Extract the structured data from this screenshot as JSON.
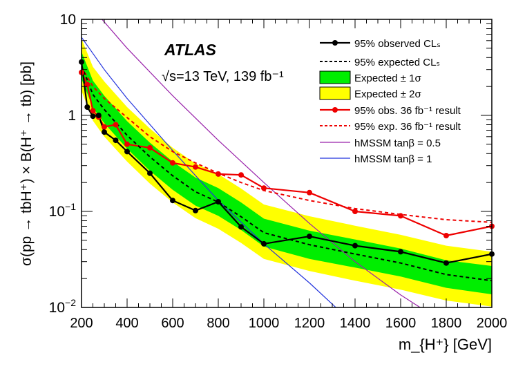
{
  "chart_data": {
    "type": "line",
    "yscale": "log",
    "xlim": [
      200,
      2000
    ],
    "ylim": [
      0.01,
      10
    ],
    "ylabel": "σ(pp → tbH⁺) × B(H⁺ → tb) [pb]",
    "xlabel": "m_{H⁺} [GeV]",
    "x_ticks": [
      200,
      400,
      600,
      800,
      1000,
      1200,
      1400,
      1600,
      1800,
      2000
    ],
    "y_ticks": [
      {
        "value": 0.01,
        "base": "10",
        "exp": "−2"
      },
      {
        "value": 0.1,
        "base": "10",
        "exp": "−1"
      },
      {
        "value": 1,
        "base": "1",
        "exp": ""
      },
      {
        "value": 10,
        "base": "10",
        "exp": ""
      }
    ],
    "experiment": "ATLAS",
    "energy_label": "√s=13 TeV, 139 fb⁻¹",
    "legend_position": "top-right",
    "legend": [
      {
        "key": "obs",
        "label": "95% observed CLₛ"
      },
      {
        "key": "exp",
        "label": "95% expected CLₛ"
      },
      {
        "key": "band1",
        "label": "Expected ± 1σ"
      },
      {
        "key": "band2",
        "label": "Expected ± 2σ"
      },
      {
        "key": "obs36",
        "label": "95% obs. 36 fb⁻¹ result"
      },
      {
        "key": "exp36",
        "label": "95% exp. 36 fb⁻¹ result"
      },
      {
        "key": "hm05",
        "label": "hMSSM tanβ = 0.5"
      },
      {
        "key": "hm1",
        "label": "hMSSM tanβ = 1"
      }
    ],
    "colors": {
      "obs": "#000000",
      "exp": "#000000",
      "band1": "#00ee00",
      "band2": "#ffff00",
      "obs36": "#ee0000",
      "exp36": "#ee0000",
      "hm05": "#9922aa",
      "hm1": "#2233dd"
    },
    "series": [
      {
        "name": "95% observed CLs",
        "key": "obs",
        "x": [
          200,
          225,
          250,
          275,
          300,
          350,
          400,
          500,
          600,
          700,
          800,
          900,
          1000,
          1200,
          1400,
          1600,
          1800,
          2000
        ],
        "y": [
          3.6,
          1.22,
          0.98,
          1.0,
          0.67,
          0.55,
          0.42,
          0.25,
          0.13,
          0.102,
          0.126,
          0.069,
          0.046,
          0.055,
          0.044,
          0.038,
          0.029,
          0.036
        ]
      },
      {
        "name": "95% expected CLs",
        "key": "exp",
        "x": [
          200,
          250,
          300,
          400,
          500,
          600,
          700,
          800,
          900,
          1000,
          1200,
          1400,
          1600,
          1800,
          2000
        ],
        "y": [
          3.3,
          1.65,
          1.15,
          0.62,
          0.37,
          0.235,
          0.16,
          0.125,
          0.088,
          0.06,
          0.045,
          0.036,
          0.029,
          0.022,
          0.019
        ]
      },
      {
        "name": "Expected ±1σ",
        "key": "band1",
        "x": [
          200,
          250,
          300,
          400,
          500,
          600,
          700,
          800,
          900,
          1000,
          1200,
          1400,
          1600,
          1800,
          2000
        ],
        "low": [
          2.4,
          1.2,
          0.83,
          0.45,
          0.265,
          0.168,
          0.115,
          0.09,
          0.064,
          0.043,
          0.032,
          0.026,
          0.021,
          0.016,
          0.0137
        ],
        "high": [
          4.6,
          2.3,
          1.6,
          0.87,
          0.52,
          0.33,
          0.225,
          0.175,
          0.124,
          0.084,
          0.063,
          0.051,
          0.041,
          0.031,
          0.027
        ]
      },
      {
        "name": "Expected ±2σ",
        "key": "band2",
        "x": [
          200,
          250,
          300,
          400,
          500,
          600,
          700,
          800,
          900,
          1000,
          1200,
          1400,
          1600,
          1800,
          2000
        ],
        "low": [
          1.8,
          0.88,
          0.6,
          0.33,
          0.195,
          0.124,
          0.085,
          0.066,
          0.047,
          0.032,
          0.024,
          0.019,
          0.0153,
          0.0118,
          0.0102
        ],
        "high": [
          6.3,
          3.2,
          2.25,
          1.22,
          0.73,
          0.46,
          0.315,
          0.245,
          0.173,
          0.118,
          0.089,
          0.071,
          0.057,
          0.044,
          0.038
        ]
      },
      {
        "name": "95% obs. 36 fb-1 result",
        "key": "obs36",
        "x": [
          200,
          225,
          250,
          275,
          300,
          350,
          400,
          500,
          600,
          700,
          800,
          900,
          1000,
          1200,
          1400,
          1600,
          1800,
          2000
        ],
        "y": [
          2.8,
          2.1,
          1.12,
          0.96,
          0.76,
          0.8,
          0.5,
          0.46,
          0.32,
          0.29,
          0.245,
          0.24,
          0.175,
          0.157,
          0.1,
          0.09,
          0.056,
          0.07
        ]
      },
      {
        "name": "95% exp. 36 fb-1 result",
        "key": "exp36",
        "x": [
          200,
          250,
          300,
          400,
          500,
          600,
          700,
          800,
          900,
          1000,
          1200,
          1400,
          1600,
          1800,
          2000
        ],
        "y": [
          3.2,
          2.0,
          1.5,
          0.95,
          0.6,
          0.42,
          0.32,
          0.25,
          0.2,
          0.165,
          0.13,
          0.107,
          0.093,
          0.082,
          0.077
        ]
      },
      {
        "name": "hMSSM tanβ = 0.5",
        "key": "hm05",
        "x": [
          290,
          400,
          600,
          800,
          1000,
          1200,
          1400,
          1600,
          1700
        ],
        "y": [
          10,
          5.0,
          1.6,
          0.55,
          0.2,
          0.075,
          0.03,
          0.0135,
          0.0095
        ]
      },
      {
        "name": "hMSSM tanβ = 1",
        "key": "hm1",
        "x": [
          200,
          300,
          400,
          600,
          800,
          1000,
          1200,
          1330
        ],
        "y": [
          6.5,
          3.0,
          1.5,
          0.43,
          0.13,
          0.046,
          0.018,
          0.0093
        ]
      }
    ]
  }
}
